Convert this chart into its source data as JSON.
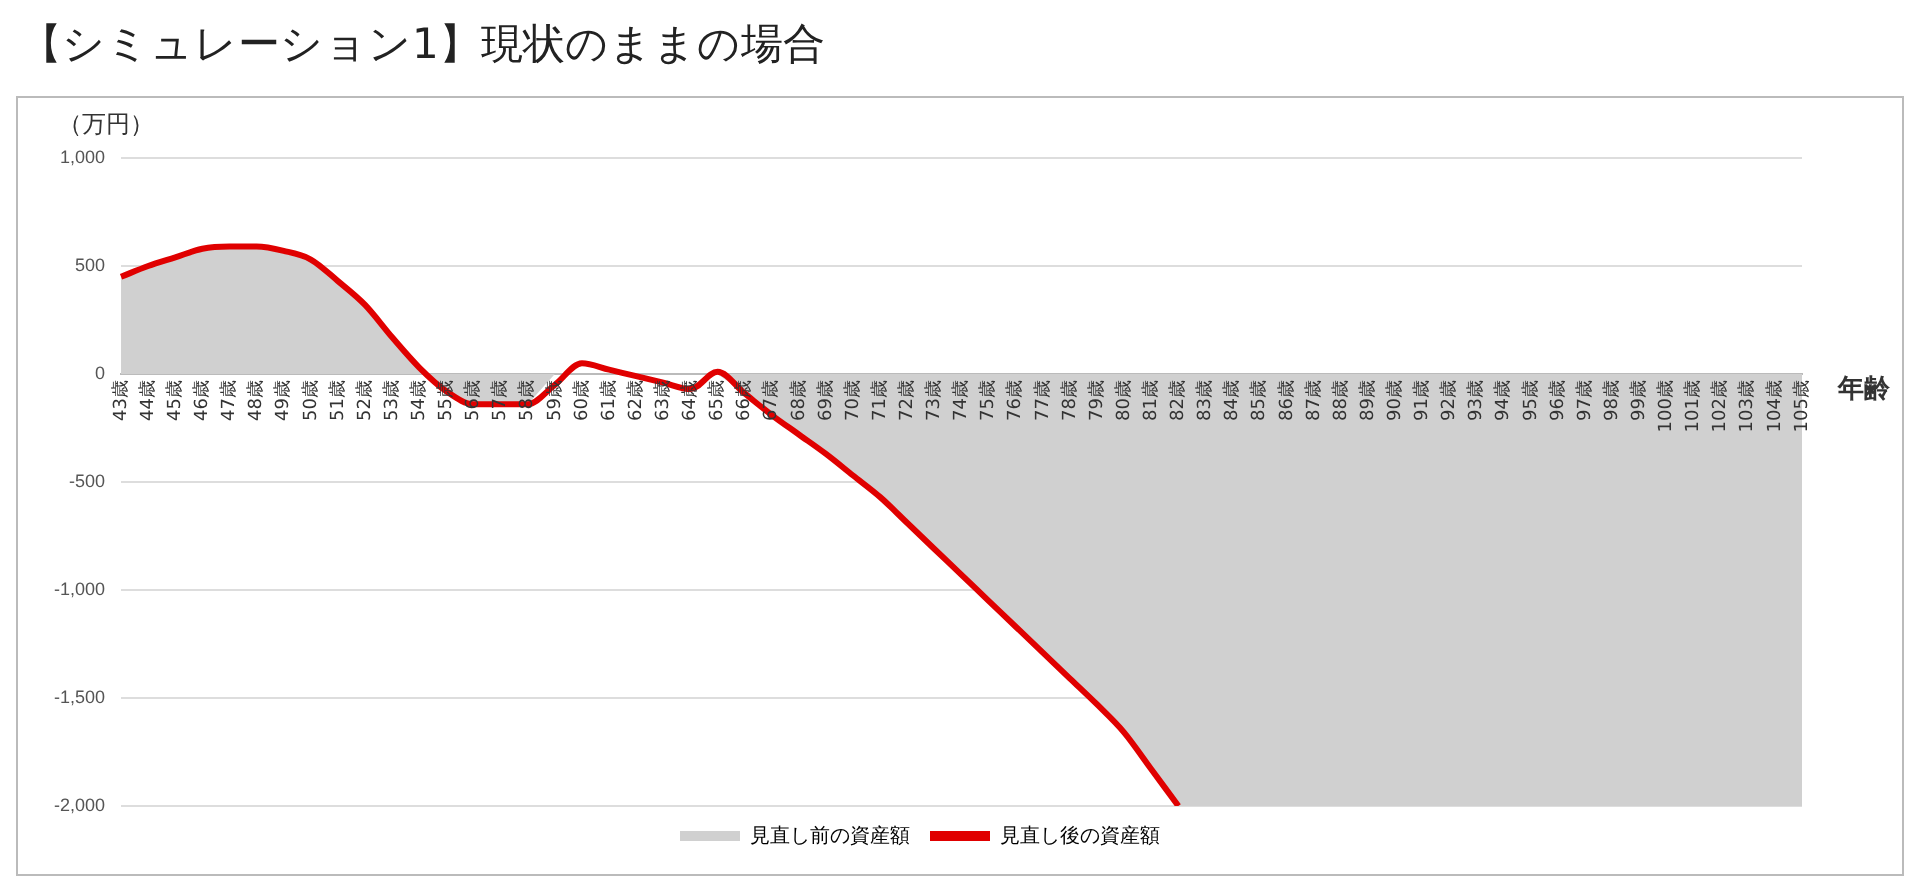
{
  "chart_data": {
    "type": "area",
    "title": "【シミュレーション1】現状のままの場合",
    "ylabel": "（万円）",
    "xlabel": "年齢",
    "categories": [
      "43歳",
      "44歳",
      "45歳",
      "46歳",
      "47歳",
      "48歳",
      "49歳",
      "50歳",
      "51歳",
      "52歳",
      "53歳",
      "54歳",
      "55歳",
      "56歳",
      "57歳",
      "58歳",
      "59歳",
      "60歳",
      "61歳",
      "62歳",
      "63歳",
      "64歳",
      "65歳",
      "66歳",
      "67歳",
      "68歳",
      "69歳",
      "70歳",
      "71歳",
      "72歳",
      "73歳",
      "74歳",
      "75歳",
      "76歳",
      "77歳",
      "78歳",
      "79歳",
      "80歳",
      "81歳",
      "82歳",
      "83歳",
      "84歳",
      "85歳",
      "86歳",
      "87歳",
      "88歳",
      "89歳",
      "90歳",
      "91歳",
      "92歳",
      "93歳",
      "94歳",
      "95歳",
      "96歳",
      "97歳",
      "98歳",
      "99歳",
      "100歳",
      "101歳",
      "102歳",
      "103歳",
      "104歳",
      "105歳"
    ],
    "series": [
      {
        "name": "見直し前の資産額",
        "color": "#d0d0d0",
        "values": [
          450,
          500,
          540,
          580,
          590,
          590,
          570,
          530,
          430,
          320,
          170,
          30,
          -80,
          -140,
          -140,
          -140,
          0,
          0,
          0,
          0,
          0,
          0,
          0,
          -90,
          -190,
          -280,
          -370,
          -470,
          -570,
          -690,
          -810,
          -930,
          -1050,
          -1170,
          -1290,
          -1410,
          -1530,
          -1660,
          -1830,
          -2000,
          -2000,
          -2000,
          -2000,
          -2000,
          -2000,
          -2000,
          -2000,
          -2000,
          -2000,
          -2000,
          -2000,
          -2000,
          -2000,
          -2000,
          -2000,
          -2000,
          -2000,
          -2000,
          -2000,
          -2000,
          -2000,
          -2000,
          -2000
        ]
      },
      {
        "name": "見直し後の資産額",
        "type": "line",
        "color": "#e00000",
        "values": [
          450,
          500,
          540,
          580,
          590,
          590,
          570,
          530,
          430,
          320,
          170,
          30,
          -80,
          -140,
          -140,
          -140,
          -50,
          50,
          20,
          -10,
          -40,
          -70,
          10,
          -90,
          -190,
          -280,
          -370,
          -470,
          -570,
          -690,
          -810,
          -930,
          -1050,
          -1170,
          -1290,
          -1410,
          -1530,
          -1660,
          -1830,
          -2000,
          null,
          null,
          null,
          null,
          null,
          null,
          null,
          null,
          null,
          null,
          null,
          null,
          null,
          null,
          null,
          null,
          null,
          null,
          null,
          null,
          null,
          null,
          null
        ]
      }
    ],
    "ylim": [
      -2000,
      1000
    ],
    "yticks": [
      {
        "value": -2000,
        "label": "-2,000"
      },
      {
        "value": -1500,
        "label": "-1,500"
      },
      {
        "value": -1000,
        "label": "-1,000"
      },
      -500,
      0,
      500,
      {
        "value": 1000,
        "label": "1,000"
      }
    ],
    "grid": "y",
    "legend": "bottom"
  }
}
